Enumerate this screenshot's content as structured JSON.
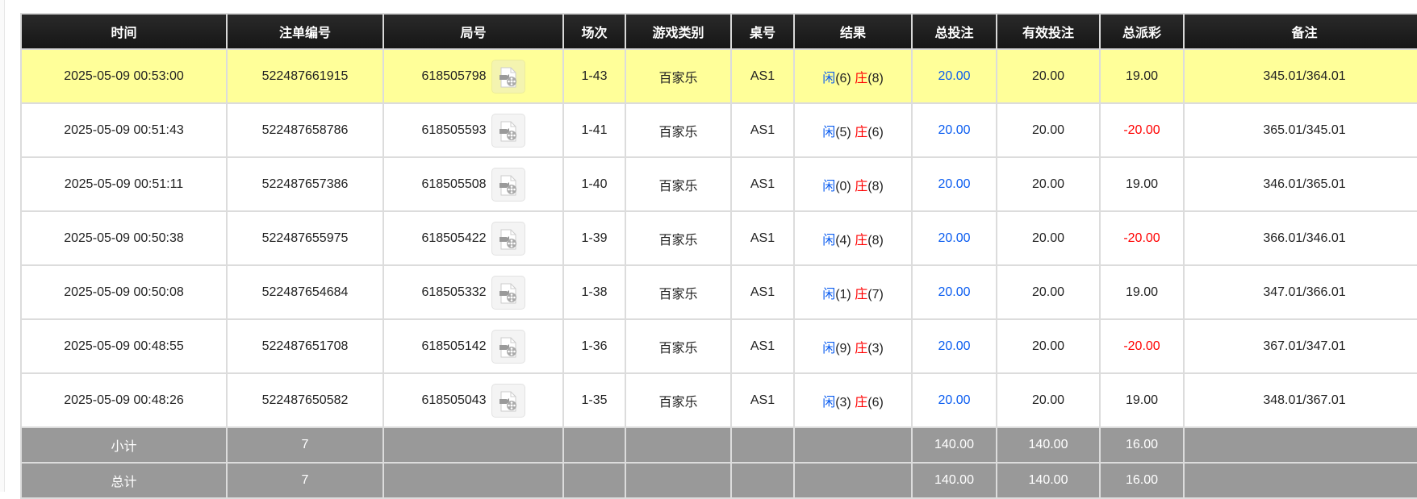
{
  "colors": {
    "header_bg": "#1b1b1b",
    "highlight_row": "#ffff99",
    "summary_bg": "#999999",
    "player": "#0a5cf0",
    "banker": "#ff0000",
    "negative": "#ff0000",
    "total_bet": "#0a5cf0"
  },
  "headers": [
    "时间",
    "注单编号",
    "局号",
    "场次",
    "游戏类别",
    "桌号",
    "结果",
    "总投注",
    "有效投注",
    "总派彩",
    "备注"
  ],
  "rows": [
    {
      "time": "2025-05-09 00:53:00",
      "bet_id": "522487661915",
      "round": "618505798",
      "session": "1-43",
      "game": "百家乐",
      "table": "AS1",
      "player_label": "闲",
      "player_score": "(6)",
      "banker_label": "庄",
      "banker_score": "(8)",
      "total_bet": "20.00",
      "valid_bet": "20.00",
      "payout": "19.00",
      "payout_negative": false,
      "note": "345.01/364.01",
      "highlighted": true
    },
    {
      "time": "2025-05-09 00:51:43",
      "bet_id": "522487658786",
      "round": "618505593",
      "session": "1-41",
      "game": "百家乐",
      "table": "AS1",
      "player_label": "闲",
      "player_score": "(5)",
      "banker_label": "庄",
      "banker_score": "(6)",
      "total_bet": "20.00",
      "valid_bet": "20.00",
      "payout": "-20.00",
      "payout_negative": true,
      "note": "365.01/345.01"
    },
    {
      "time": "2025-05-09 00:51:11",
      "bet_id": "522487657386",
      "round": "618505508",
      "session": "1-40",
      "game": "百家乐",
      "table": "AS1",
      "player_label": "闲",
      "player_score": "(0)",
      "banker_label": "庄",
      "banker_score": "(8)",
      "total_bet": "20.00",
      "valid_bet": "20.00",
      "payout": "19.00",
      "payout_negative": false,
      "note": "346.01/365.01"
    },
    {
      "time": "2025-05-09 00:50:38",
      "bet_id": "522487655975",
      "round": "618505422",
      "session": "1-39",
      "game": "百家乐",
      "table": "AS1",
      "player_label": "闲",
      "player_score": "(4)",
      "banker_label": "庄",
      "banker_score": "(8)",
      "total_bet": "20.00",
      "valid_bet": "20.00",
      "payout": "-20.00",
      "payout_negative": true,
      "note": "366.01/346.01"
    },
    {
      "time": "2025-05-09 00:50:08",
      "bet_id": "522487654684",
      "round": "618505332",
      "session": "1-38",
      "game": "百家乐",
      "table": "AS1",
      "player_label": "闲",
      "player_score": "(1)",
      "banker_label": "庄",
      "banker_score": "(7)",
      "total_bet": "20.00",
      "valid_bet": "20.00",
      "payout": "19.00",
      "payout_negative": false,
      "note": "347.01/366.01"
    },
    {
      "time": "2025-05-09 00:48:55",
      "bet_id": "522487651708",
      "round": "618505142",
      "session": "1-36",
      "game": "百家乐",
      "table": "AS1",
      "player_label": "闲",
      "player_score": "(9)",
      "banker_label": "庄",
      "banker_score": "(3)",
      "total_bet": "20.00",
      "valid_bet": "20.00",
      "payout": "-20.00",
      "payout_negative": true,
      "note": "367.01/347.01"
    },
    {
      "time": "2025-05-09 00:48:26",
      "bet_id": "522487650582",
      "round": "618505043",
      "session": "1-35",
      "game": "百家乐",
      "table": "AS1",
      "player_label": "闲",
      "player_score": "(3)",
      "banker_label": "庄",
      "banker_score": "(6)",
      "total_bet": "20.00",
      "valid_bet": "20.00",
      "payout": "19.00",
      "payout_negative": false,
      "note": "348.01/367.01"
    }
  ],
  "subtotal": {
    "label": "小计",
    "count": "7",
    "total_bet": "140.00",
    "valid_bet": "140.00",
    "payout": "16.00"
  },
  "total": {
    "label": "总计",
    "count": "7",
    "total_bet": "140.00",
    "valid_bet": "140.00",
    "payout": "16.00"
  }
}
